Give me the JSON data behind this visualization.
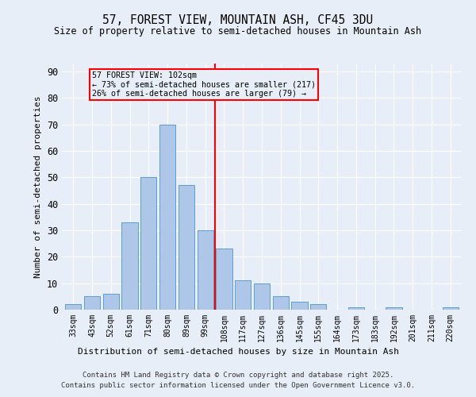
{
  "title": "57, FOREST VIEW, MOUNTAIN ASH, CF45 3DU",
  "subtitle": "Size of property relative to semi-detached houses in Mountain Ash",
  "xlabel": "Distribution of semi-detached houses by size in Mountain Ash",
  "ylabel": "Number of semi-detached properties",
  "categories": [
    "33sqm",
    "43sqm",
    "52sqm",
    "61sqm",
    "71sqm",
    "80sqm",
    "89sqm",
    "99sqm",
    "108sqm",
    "117sqm",
    "127sqm",
    "136sqm",
    "145sqm",
    "155sqm",
    "164sqm",
    "173sqm",
    "183sqm",
    "192sqm",
    "201sqm",
    "211sqm",
    "220sqm"
  ],
  "values": [
    2,
    5,
    6,
    33,
    50,
    70,
    47,
    30,
    23,
    11,
    10,
    5,
    3,
    2,
    0,
    1,
    0,
    1,
    0,
    0,
    1
  ],
  "bar_color": "#aec6e8",
  "bar_edge_color": "#5a9fd4",
  "background_color": "#e8eef8",
  "vline_x": 7.5,
  "vline_color": "red",
  "annotation_title": "57 FOREST VIEW: 102sqm",
  "annotation_line1": "← 73% of semi-detached houses are smaller (217)",
  "annotation_line2": "26% of semi-detached houses are larger (79) →",
  "annotation_box_color": "red",
  "ylim": [
    0,
    93
  ],
  "yticks": [
    0,
    10,
    20,
    30,
    40,
    50,
    60,
    70,
    80,
    90
  ],
  "footer_line1": "Contains HM Land Registry data © Crown copyright and database right 2025.",
  "footer_line2": "Contains public sector information licensed under the Open Government Licence v3.0."
}
